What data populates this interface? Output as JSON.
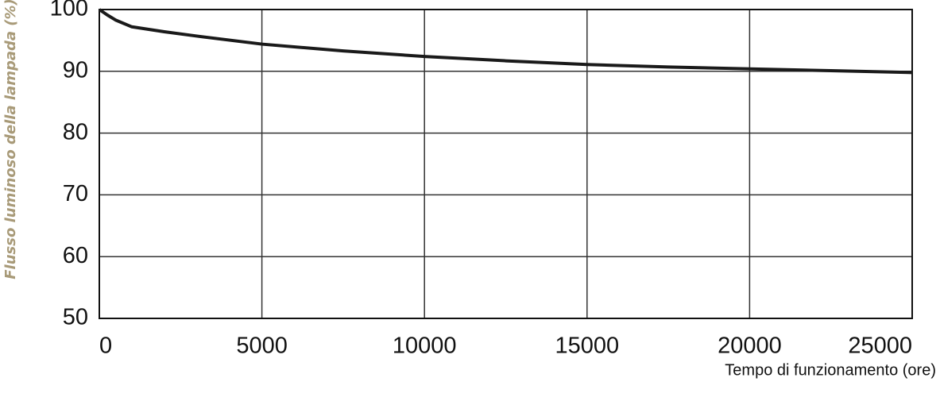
{
  "chart_data": {
    "type": "line",
    "x_label": "Tempo di funzionamento (ore)",
    "y_label": "Flusso luminoso della lampada (%)",
    "x": [
      0,
      250,
      500,
      1000,
      2000,
      3000,
      5000,
      7500,
      10000,
      12500,
      15000,
      17500,
      20000,
      22500,
      25000
    ],
    "values": [
      100,
      99.1,
      98.3,
      97.2,
      96.4,
      95.7,
      94.4,
      93.3,
      92.4,
      91.7,
      91.1,
      90.7,
      90.4,
      90.1,
      89.8
    ],
    "color": "#1a1a1a",
    "xlim": [
      0,
      25000
    ],
    "xticks": [
      0,
      5000,
      10000,
      15000,
      20000,
      25000
    ],
    "ylim": [
      50,
      100
    ],
    "yticks": [
      50,
      60,
      70,
      80,
      90,
      100
    ],
    "grid": true
  }
}
